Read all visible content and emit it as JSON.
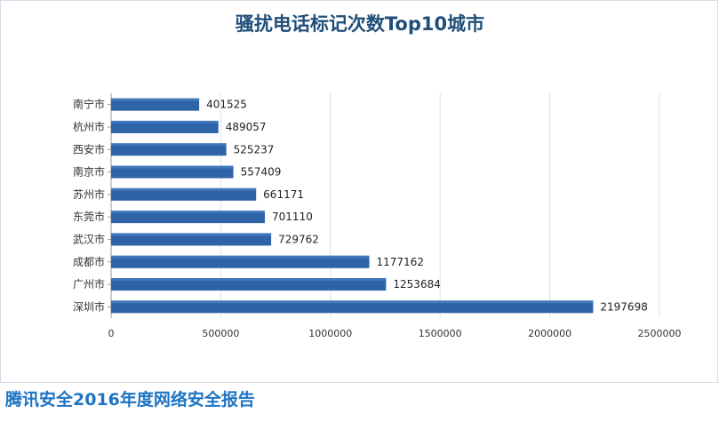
{
  "chart_data": {
    "type": "bar",
    "orientation": "horizontal",
    "title": "骚扰电话标记次数Top10城市",
    "categories": [
      "南宁市",
      "杭州市",
      "西安市",
      "南京市",
      "苏州市",
      "东莞市",
      "武汉市",
      "成都市",
      "广州市",
      "深圳市"
    ],
    "values": [
      401525,
      489057,
      525237,
      557409,
      661171,
      701110,
      729762,
      1177162,
      1253684,
      2197698
    ],
    "value_labels": [
      "401525",
      "489057",
      "525237",
      "557409",
      "661171",
      "701110",
      "729762",
      "1177162",
      "1253684",
      "2197698"
    ],
    "xlim": [
      0,
      2500000
    ],
    "x_ticks": [
      0,
      500000,
      1000000,
      1500000,
      2000000,
      2500000
    ],
    "x_tick_labels": [
      "0",
      "500000",
      "1000000",
      "1500000",
      "2000000",
      "2500000"
    ],
    "grid": true,
    "legend": "none",
    "bar_color": "#2e63a8"
  },
  "footer": {
    "source_text": "腾讯安全2016年度网络安全报告"
  }
}
